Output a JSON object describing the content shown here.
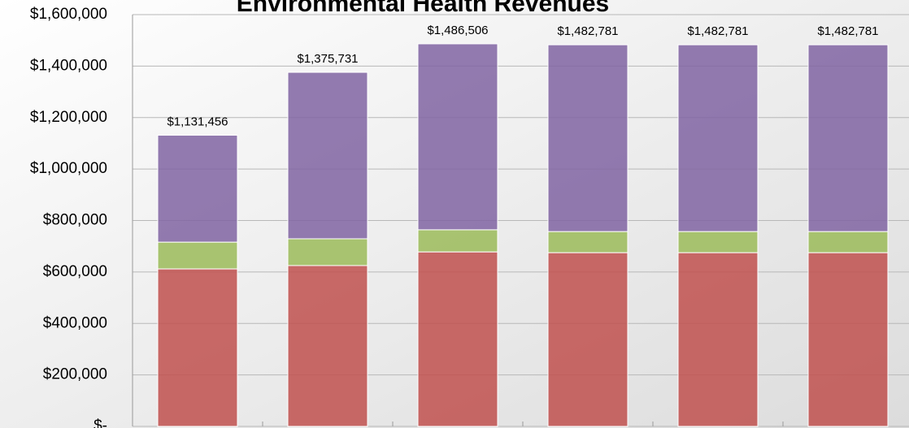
{
  "chart_data": {
    "type": "stacked_bar",
    "title": "Environmental Health Revenues",
    "categories": [
      null,
      null,
      null,
      null,
      null,
      null
    ],
    "series": [
      {
        "color": "#c0504d",
        "values": [
          612000,
          625000,
          678000,
          675000,
          675000,
          675000
        ]
      },
      {
        "color": "#9bbb59",
        "values": [
          104000,
          104000,
          86000,
          82000,
          82000,
          82000
        ]
      },
      {
        "color": "#8064a2",
        "values": [
          415456,
          646731,
          722506,
          725781,
          725781,
          725781
        ]
      }
    ],
    "total_labels": [
      "$1,131,456",
      "$1,375,731",
      "$1,486,506",
      "$1,482,781",
      "$1,482,781",
      "$1,482,781"
    ],
    "ylim": [
      0,
      1600000
    ],
    "yticks": [
      {
        "value": 0,
        "label": "$-"
      },
      {
        "value": 200000,
        "label": "$200,000"
      },
      {
        "value": 400000,
        "label": "$400,000"
      },
      {
        "value": 600000,
        "label": "$600,000"
      },
      {
        "value": 800000,
        "label": "$800,000"
      },
      {
        "value": 1000000,
        "label": "$1,000,000"
      },
      {
        "value": 1200000,
        "label": "$1,200,000"
      },
      {
        "value": 1400000,
        "label": "$1,400,000"
      },
      {
        "value": 1600000,
        "label": "$1,600,000"
      }
    ],
    "grid": true
  }
}
